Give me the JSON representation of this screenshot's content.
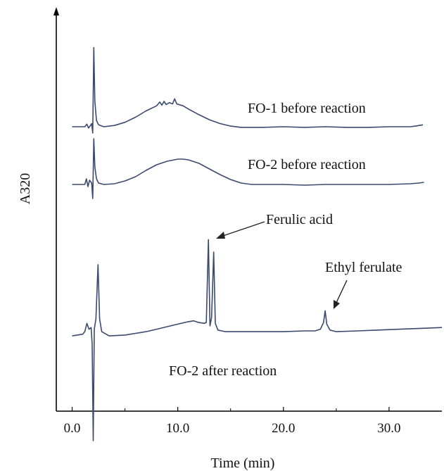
{
  "chart_data": {
    "type": "line",
    "title": "",
    "xlabel": "Time (min)",
    "ylabel": "A320",
    "xlim": [
      -1.5,
      35
    ],
    "xticks": [
      0,
      10,
      20,
      30
    ],
    "xtick_labels": [
      "0.0",
      "10.0",
      "20.0",
      "30.0"
    ],
    "grid": false,
    "legend": "none",
    "line_color": "#3a4a6e",
    "series": [
      {
        "name": "FO-1 before reaction",
        "points": [
          [
            0,
            0.3
          ],
          [
            1.2,
            0.3
          ],
          [
            1.4,
            0.34
          ],
          [
            1.55,
            0.28
          ],
          [
            1.7,
            0.31
          ],
          [
            1.85,
            0.35
          ],
          [
            1.95,
            0.2
          ],
          [
            2.05,
            1.55
          ],
          [
            2.15,
            0.7
          ],
          [
            2.3,
            0.4
          ],
          [
            2.5,
            0.33
          ],
          [
            3.0,
            0.3
          ],
          [
            4.0,
            0.32
          ],
          [
            5.0,
            0.37
          ],
          [
            6.0,
            0.45
          ],
          [
            7.0,
            0.55
          ],
          [
            8.0,
            0.63
          ],
          [
            8.3,
            0.69
          ],
          [
            8.5,
            0.64
          ],
          [
            8.7,
            0.7
          ],
          [
            8.9,
            0.65
          ],
          [
            9.2,
            0.68
          ],
          [
            9.5,
            0.66
          ],
          [
            9.7,
            0.74
          ],
          [
            9.9,
            0.66
          ],
          [
            10.5,
            0.63
          ],
          [
            11.0,
            0.58
          ],
          [
            12.0,
            0.49
          ],
          [
            13.0,
            0.41
          ],
          [
            14.0,
            0.35
          ],
          [
            15.0,
            0.31
          ],
          [
            16.0,
            0.29
          ],
          [
            18.0,
            0.29
          ],
          [
            20.0,
            0.3
          ],
          [
            22.0,
            0.29
          ],
          [
            24.0,
            0.3
          ],
          [
            26.0,
            0.29
          ],
          [
            28.0,
            0.29
          ],
          [
            30.0,
            0.3
          ],
          [
            31.0,
            0.3
          ],
          [
            32.0,
            0.3
          ],
          [
            32.5,
            0.31
          ],
          [
            33.2,
            0.33
          ]
        ]
      },
      {
        "name": "FO-2 before reaction",
        "points": [
          [
            0,
            0.3
          ],
          [
            1.2,
            0.3
          ],
          [
            1.35,
            0.38
          ],
          [
            1.5,
            0.27
          ],
          [
            1.65,
            0.36
          ],
          [
            1.85,
            0.32
          ],
          [
            1.95,
            0.1
          ],
          [
            2.05,
            0.95
          ],
          [
            2.15,
            0.55
          ],
          [
            2.3,
            0.38
          ],
          [
            2.5,
            0.32
          ],
          [
            3.0,
            0.3
          ],
          [
            4.0,
            0.31
          ],
          [
            5.0,
            0.35
          ],
          [
            6.0,
            0.41
          ],
          [
            7.0,
            0.5
          ],
          [
            8.0,
            0.58
          ],
          [
            9.0,
            0.63
          ],
          [
            10.0,
            0.66
          ],
          [
            10.5,
            0.66
          ],
          [
            11.0,
            0.65
          ],
          [
            12.0,
            0.6
          ],
          [
            13.0,
            0.52
          ],
          [
            14.0,
            0.44
          ],
          [
            15.0,
            0.37
          ],
          [
            16.0,
            0.32
          ],
          [
            17.0,
            0.3
          ],
          [
            18.0,
            0.3
          ],
          [
            20.0,
            0.3
          ],
          [
            22.0,
            0.29
          ],
          [
            24.0,
            0.3
          ],
          [
            26.0,
            0.3
          ],
          [
            28.0,
            0.3
          ],
          [
            30.0,
            0.3
          ],
          [
            32.0,
            0.31
          ],
          [
            32.8,
            0.32
          ],
          [
            33.3,
            0.33
          ]
        ]
      },
      {
        "name": "FO-2 after reaction",
        "points": [
          [
            0,
            0.4
          ],
          [
            1.0,
            0.42
          ],
          [
            1.2,
            0.45
          ],
          [
            1.4,
            0.55
          ],
          [
            1.6,
            0.48
          ],
          [
            1.8,
            0.5
          ],
          [
            1.9,
            0.3
          ],
          [
            2.0,
            -0.85
          ],
          [
            2.1,
            0.48
          ],
          [
            2.25,
            0.6
          ],
          [
            2.45,
            1.25
          ],
          [
            2.6,
            0.6
          ],
          [
            2.8,
            0.45
          ],
          [
            3.5,
            0.4
          ],
          [
            5.0,
            0.41
          ],
          [
            6.0,
            0.43
          ],
          [
            7.0,
            0.45
          ],
          [
            8.0,
            0.48
          ],
          [
            9.0,
            0.51
          ],
          [
            10.0,
            0.54
          ],
          [
            11.0,
            0.57
          ],
          [
            11.5,
            0.58
          ],
          [
            12.0,
            0.56
          ],
          [
            12.5,
            0.55
          ],
          [
            12.7,
            0.56
          ],
          [
            12.9,
            1.55
          ],
          [
            13.05,
            0.52
          ],
          [
            13.2,
            0.62
          ],
          [
            13.4,
            1.4
          ],
          [
            13.55,
            0.55
          ],
          [
            13.8,
            0.47
          ],
          [
            14.5,
            0.45
          ],
          [
            16.0,
            0.45
          ],
          [
            18.0,
            0.45
          ],
          [
            20.0,
            0.45
          ],
          [
            22.0,
            0.46
          ],
          [
            23.0,
            0.46
          ],
          [
            23.5,
            0.48
          ],
          [
            23.8,
            0.56
          ],
          [
            23.95,
            0.7
          ],
          [
            24.1,
            0.54
          ],
          [
            24.4,
            0.47
          ],
          [
            25.0,
            0.45
          ],
          [
            27.0,
            0.46
          ],
          [
            29.0,
            0.47
          ],
          [
            31.0,
            0.48
          ],
          [
            33.0,
            0.49
          ],
          [
            35.0,
            0.5
          ]
        ]
      }
    ],
    "annotations": [
      {
        "text": "FO-1 before reaction",
        "target": null
      },
      {
        "text": "FO-2 before reaction",
        "target": null
      },
      {
        "text": "Ferulic acid",
        "target": [
          12.9,
          1.45
        ]
      },
      {
        "text": "Ethyl ferulate",
        "target": [
          24.0,
          0.72
        ]
      },
      {
        "text": "FO-2 after reaction",
        "target": null
      }
    ]
  }
}
